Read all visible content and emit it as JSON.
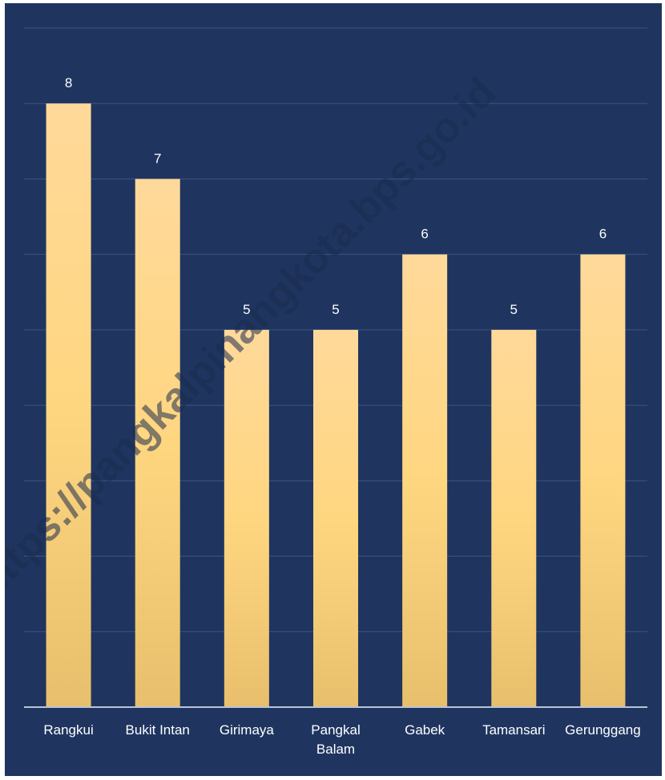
{
  "chart_data": {
    "type": "bar",
    "title": "",
    "xlabel": "",
    "ylabel": "",
    "categories": [
      "Rangkui",
      "Bukit Intan",
      "Girimaya",
      "Pangkal Balam",
      "Gabek",
      "Tamansari",
      "Gerunggang"
    ],
    "category_label_lines": [
      [
        "Rangkui"
      ],
      [
        "Bukit Intan"
      ],
      [
        "Girimaya"
      ],
      [
        "Pangkal",
        "Balam"
      ],
      [
        "Gabek"
      ],
      [
        "Tamansari"
      ],
      [
        "Gerunggang"
      ]
    ],
    "values": [
      8,
      7,
      5,
      5,
      6,
      5,
      6
    ],
    "ylim": [
      0,
      9
    ],
    "grid": true,
    "legend": "none",
    "colors": {
      "background": "#1f3560",
      "bar_top": "#ffd99a",
      "bar_bottom": "#e8bf6c",
      "grid": "#3a5580",
      "text": "#ffffff"
    }
  },
  "watermark": "https://pangkalpinangkota.bps.go.id"
}
